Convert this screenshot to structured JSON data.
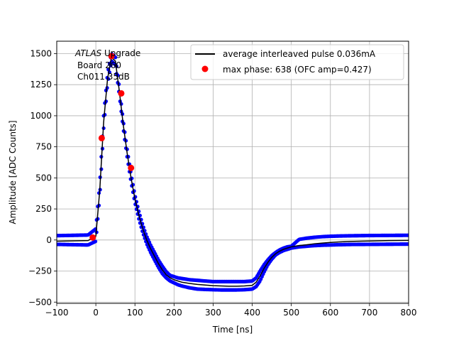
{
  "chart_data": {
    "type": "scatter",
    "xlabel": "Time [ns]",
    "ylabel": "Amplitude [ADC Counts]",
    "xlim": [
      -100,
      800
    ],
    "ylim": [
      -510,
      1600
    ],
    "x_ticks": [
      -100,
      0,
      100,
      200,
      300,
      400,
      500,
      600,
      700,
      800
    ],
    "x_tick_labels": [
      "−100",
      "0",
      "100",
      "200",
      "300",
      "400",
      "500",
      "600",
      "700",
      "800"
    ],
    "y_ticks": [
      -500,
      -250,
      0,
      250,
      500,
      750,
      1000,
      1250,
      1500
    ],
    "y_tick_labels": [
      "−500",
      "−250",
      "0",
      "250",
      "500",
      "750",
      "1000",
      "1250",
      "1500"
    ],
    "grid": true,
    "legend_position": "top-right",
    "annotation": {
      "line1_italic": "ATLAS",
      "line1_rest": " Upgrade",
      "line2": "Board 260",
      "line3": "Ch011 35dB"
    },
    "average_pulse": {
      "name": "average interleaved pulse 0.036mA",
      "color": "#000000",
      "x": [
        -100,
        -20,
        0,
        10,
        20,
        30,
        40,
        50,
        60,
        70,
        80,
        90,
        100,
        110,
        120,
        130,
        140,
        150,
        160,
        170,
        180,
        190,
        200,
        210,
        220,
        240,
        260,
        280,
        300,
        320,
        340,
        360,
        380,
        400,
        410,
        420,
        430,
        440,
        450,
        460,
        470,
        480,
        490,
        500,
        520,
        540,
        560,
        580,
        600,
        620,
        650,
        700,
        750,
        800
      ],
      "y": [
        -10,
        -5,
        30,
        400,
        950,
        1300,
        1470,
        1440,
        1200,
        930,
        700,
        500,
        330,
        200,
        90,
        0,
        -70,
        -130,
        -190,
        -240,
        -280,
        -305,
        -320,
        -330,
        -340,
        -350,
        -358,
        -363,
        -368,
        -370,
        -372,
        -372,
        -370,
        -365,
        -340,
        -290,
        -230,
        -180,
        -140,
        -110,
        -90,
        -75,
        -65,
        -55,
        -45,
        -38,
        -30,
        -25,
        -20,
        -16,
        -12,
        -8,
        -5,
        -3
      ]
    },
    "scatter_band": {
      "color": "#0000ff",
      "x": [
        -100,
        -20,
        0,
        10,
        20,
        30,
        40,
        50,
        60,
        70,
        80,
        90,
        100,
        110,
        120,
        130,
        140,
        150,
        160,
        170,
        180,
        190,
        200,
        210,
        220,
        240,
        260,
        280,
        300,
        320,
        340,
        360,
        380,
        400,
        410,
        420,
        430,
        440,
        450,
        460,
        470,
        480,
        490,
        500,
        520,
        540,
        560,
        580,
        600,
        620,
        650,
        700,
        750,
        800
      ],
      "upper": [
        35,
        40,
        90,
        450,
        1000,
        1340,
        1500,
        1470,
        1230,
        960,
        730,
        530,
        360,
        230,
        120,
        30,
        -40,
        -100,
        -160,
        -210,
        -255,
        -285,
        -295,
        -305,
        -310,
        -320,
        -325,
        -330,
        -335,
        -335,
        -335,
        -335,
        -335,
        -330,
        -305,
        -250,
        -200,
        -160,
        -125,
        -100,
        -80,
        -65,
        -55,
        -50,
        5,
        15,
        22,
        27,
        30,
        32,
        34,
        36,
        37,
        38
      ],
      "lower": [
        -35,
        -40,
        -10,
        350,
        900,
        1260,
        1440,
        1410,
        1170,
        900,
        670,
        470,
        300,
        170,
        60,
        -30,
        -100,
        -160,
        -220,
        -270,
        -305,
        -330,
        -345,
        -360,
        -370,
        -385,
        -395,
        -398,
        -400,
        -402,
        -402,
        -402,
        -400,
        -395,
        -375,
        -330,
        -260,
        -200,
        -155,
        -120,
        -100,
        -85,
        -75,
        -65,
        -55,
        -50,
        -45,
        -42,
        -40,
        -38,
        -36,
        -35,
        -34,
        -33
      ]
    },
    "max_phase": {
      "name": "max phase: 638 (OFC amp=0.427)",
      "color": "#ff0000",
      "x": [
        -8,
        15,
        40,
        65,
        90
      ],
      "y": [
        20,
        820,
        1480,
        1180,
        580
      ]
    }
  }
}
